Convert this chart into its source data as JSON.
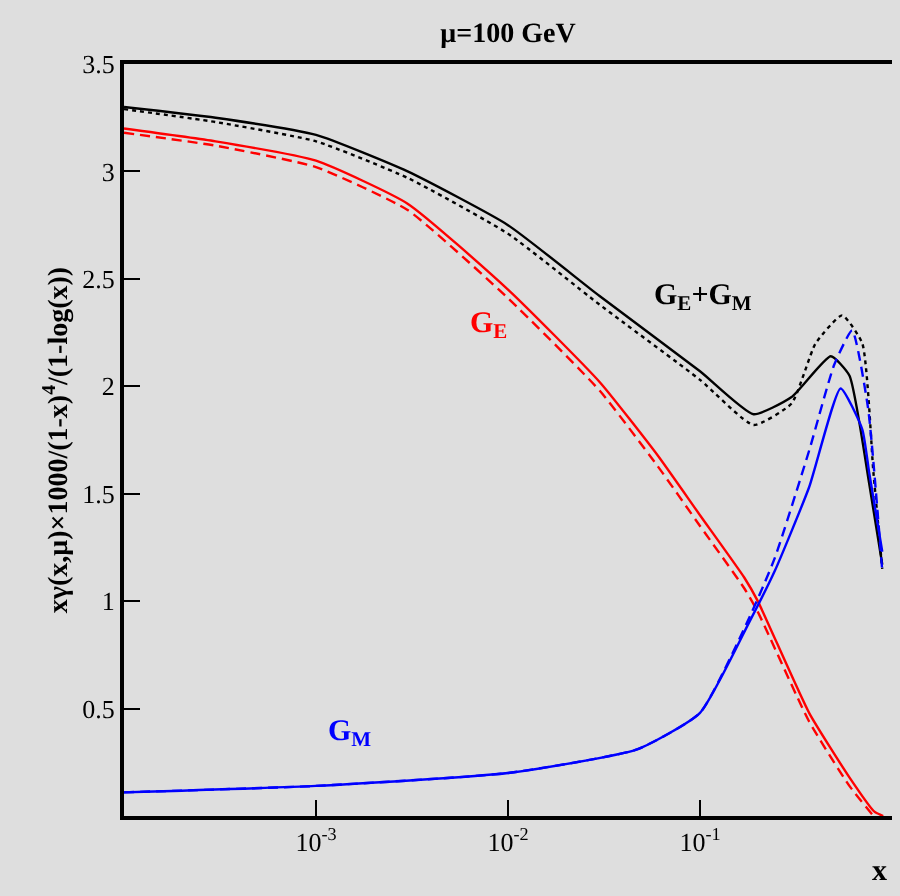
{
  "chart_data": {
    "type": "line",
    "title": "μ=100 GeV",
    "xlabel": "x",
    "ylabel": "xγ(x,μ)×1000/(1-x)$^{4}$/(1-log(x))",
    "log": "x",
    "grid": false,
    "legend": false,
    "marker": "none",
    "xlim": [
      0.0001,
      1
    ],
    "xticks": [
      {
        "value": 0.001,
        "label": "10$^{-3}$"
      },
      {
        "value": 0.01,
        "label": "10$^{-2}$"
      },
      {
        "value": 0.1,
        "label": "10$^{-1}$"
      }
    ],
    "ylim": [
      0,
      3.5
    ],
    "yticks": [
      0.5,
      1,
      1.5,
      2,
      2.5,
      3,
      3.5
    ],
    "series": [
      {
        "name": "G$_{E}$+G$_{M}$",
        "color": "#000000",
        "line_style": "solid",
        "x": [
          0.0001,
          0.0003,
          0.001,
          0.003,
          0.01,
          0.03,
          0.1,
          0.19,
          0.3,
          0.48,
          0.6,
          0.76,
          0.89
        ],
        "values": [
          3.3,
          3.25,
          3.17,
          3.0,
          2.75,
          2.42,
          2.07,
          1.87,
          1.95,
          2.14,
          2.05,
          1.55,
          1.17
        ]
      },
      {
        "color": "#000000",
        "line_style": "dotted",
        "x": [
          0.0001,
          0.0003,
          0.001,
          0.003,
          0.01,
          0.03,
          0.1,
          0.19,
          0.3,
          0.4,
          0.55,
          0.7,
          0.8,
          0.89
        ],
        "values": [
          3.29,
          3.23,
          3.14,
          2.97,
          2.71,
          2.38,
          2.03,
          1.82,
          1.92,
          2.2,
          2.33,
          2.2,
          1.6,
          1.15
        ]
      },
      {
        "name": "G$_{E}$",
        "color": "#ff0000",
        "line_style": "solid",
        "x": [
          0.0001,
          0.0003,
          0.001,
          0.003,
          0.01,
          0.03,
          0.06,
          0.1,
          0.17,
          0.2,
          0.37,
          0.6,
          0.81,
          0.9
        ],
        "values": [
          3.2,
          3.14,
          3.05,
          2.85,
          2.45,
          2.02,
          1.68,
          1.4,
          1.11,
          1.0,
          0.48,
          0.18,
          0.02,
          0
        ]
      },
      {
        "color": "#ff0000",
        "line_style": "dashed",
        "x": [
          0.0001,
          0.0003,
          0.001,
          0.003,
          0.01,
          0.03,
          0.06,
          0.1,
          0.17,
          0.2,
          0.37,
          0.6,
          0.8
        ],
        "values": [
          3.18,
          3.12,
          3.02,
          2.82,
          2.41,
          1.98,
          1.63,
          1.35,
          1.06,
          0.95,
          0.44,
          0.14,
          0
        ]
      },
      {
        "name": "G$_{M}$",
        "color": "#0000ff",
        "line_style": "solid",
        "x": [
          0.0001,
          0.001,
          0.01,
          0.047,
          0.1,
          0.18,
          0.245,
          0.37,
          0.54,
          0.7,
          0.76,
          0.89
        ],
        "values": [
          0.11,
          0.14,
          0.2,
          0.31,
          0.48,
          0.9,
          1.14,
          1.53,
          1.99,
          1.8,
          1.6,
          1.23
        ]
      },
      {
        "color": "#0000ff",
        "line_style": "dashed",
        "x": [
          0.0001,
          0.001,
          0.01,
          0.047,
          0.1,
          0.18,
          0.245,
          0.37,
          0.5,
          0.62,
          0.75,
          0.89
        ],
        "values": [
          0.11,
          0.14,
          0.2,
          0.31,
          0.48,
          0.92,
          1.2,
          1.7,
          2.1,
          2.26,
          1.9,
          1.14
        ]
      }
    ]
  }
}
